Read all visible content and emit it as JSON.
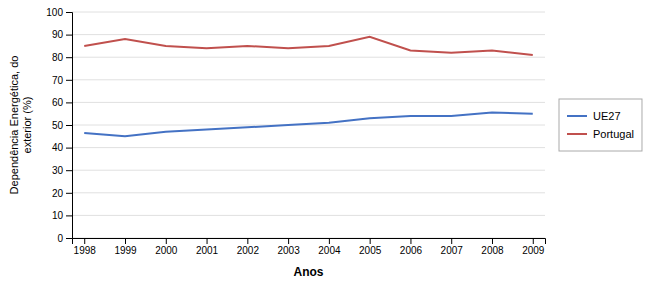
{
  "chart_data": {
    "type": "line",
    "x": [
      1998,
      1999,
      2000,
      2001,
      2002,
      2003,
      2004,
      2005,
      2006,
      2007,
      2008,
      2009
    ],
    "series": [
      {
        "name": "UE27",
        "color": "#4472C4",
        "values": [
          46.5,
          45.0,
          47.0,
          48.0,
          49.0,
          50.0,
          51.0,
          53.0,
          54.0,
          54.0,
          55.5,
          55.0
        ]
      },
      {
        "name": "Portugal",
        "color": "#C0504D",
        "values": [
          85.0,
          88.0,
          85.0,
          84.0,
          85.0,
          84.0,
          85.0,
          89.0,
          83.0,
          82.0,
          83.0,
          81.0
        ]
      }
    ],
    "xlabel": "Anos",
    "ylabel": "Dependência Energética, do\nexterior (%)",
    "xlim": [
      1997.7,
      2009.3
    ],
    "xticks": [
      1998,
      1999,
      2000,
      2001,
      2002,
      2003,
      2004,
      2005,
      2006,
      2007,
      2008,
      2009
    ],
    "ylim": [
      0,
      100
    ],
    "yticks": [
      0,
      10,
      20,
      30,
      40,
      50,
      60,
      70,
      80,
      90,
      100
    ],
    "grid": true,
    "legend": "right"
  }
}
